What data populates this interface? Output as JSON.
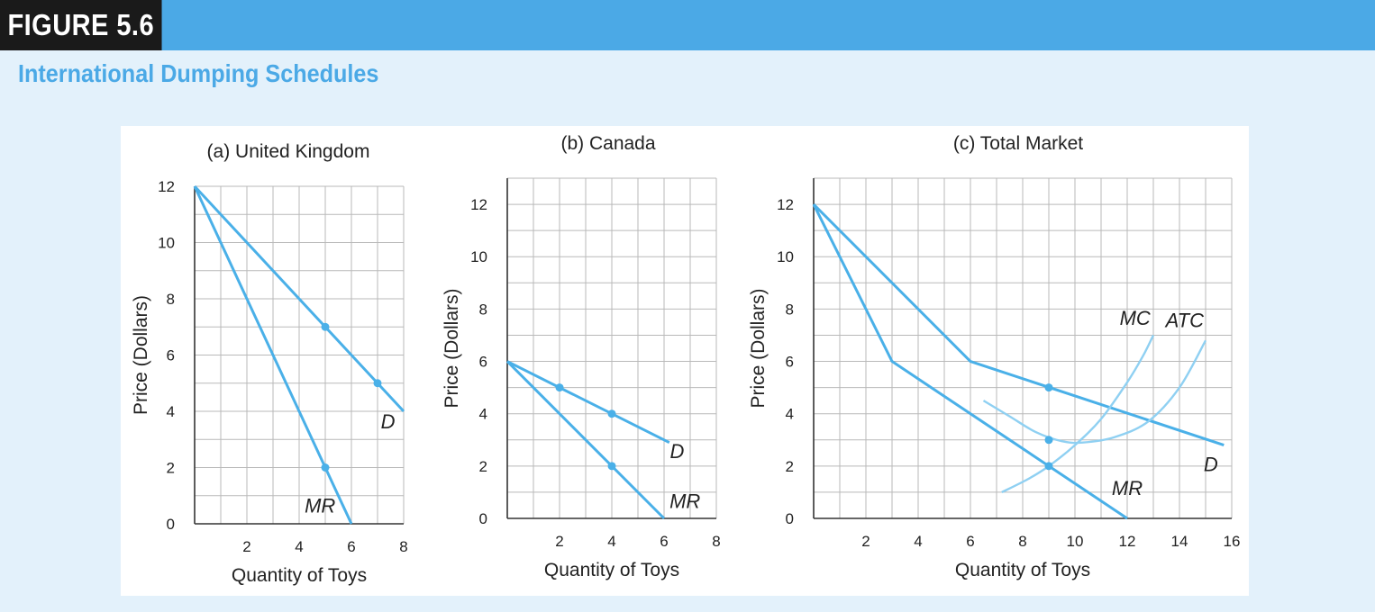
{
  "figure": {
    "label": "FIGURE 5.6",
    "title": "International Dumping Schedules"
  },
  "colors": {
    "accent": "#4ba9e6",
    "curve": "#4ab0e8",
    "curve_light": "#8fd0f2",
    "grid": "#b9b9b9",
    "axis": "#333333",
    "text": "#222222"
  },
  "chart_data": [
    {
      "type": "line",
      "title": "(a)   United Kingdom",
      "xlabel": "Quantity of Toys",
      "ylabel": "Price (Dollars)",
      "xlim": [
        0,
        8
      ],
      "ylim": [
        0,
        12
      ],
      "xticks": [
        2,
        4,
        6,
        8
      ],
      "yticks": [
        0,
        2,
        4,
        6,
        8,
        10,
        12
      ],
      "grid": true,
      "series": [
        {
          "name": "D",
          "label": "D",
          "label_at": [
            7.4,
            3.4
          ],
          "style": "solid",
          "x": [
            0,
            8
          ],
          "y": [
            12,
            4
          ]
        },
        {
          "name": "MR",
          "label": "MR",
          "label_at": [
            4.8,
            0.4
          ],
          "style": "solid",
          "x": [
            0,
            6
          ],
          "y": [
            12,
            0
          ]
        }
      ],
      "points": [
        {
          "x": 5,
          "y": 7,
          "label": "D at Q=5"
        },
        {
          "x": 7,
          "y": 5,
          "label": "D at Q=7"
        },
        {
          "x": 5,
          "y": 2,
          "label": "MR at Q=5"
        }
      ]
    },
    {
      "type": "line",
      "title": "(b)   Canada",
      "xlabel": "Quantity of Toys",
      "ylabel": "Price (Dollars)",
      "xlim": [
        0,
        8
      ],
      "ylim": [
        0,
        13
      ],
      "xticks": [
        2,
        4,
        6,
        8
      ],
      "yticks": [
        0,
        2,
        4,
        6,
        8,
        10,
        12
      ],
      "grid": true,
      "series": [
        {
          "name": "D",
          "label": "D",
          "label_at": [
            6.5,
            2.3
          ],
          "style": "solid",
          "x": [
            0,
            6.2
          ],
          "y": [
            6,
            2.9
          ]
        },
        {
          "name": "MR",
          "label": "MR",
          "label_at": [
            6.8,
            0.4
          ],
          "style": "solid",
          "x": [
            0,
            6
          ],
          "y": [
            6,
            0
          ]
        }
      ],
      "points": [
        {
          "x": 2,
          "y": 5,
          "label": "D at Q=2"
        },
        {
          "x": 4,
          "y": 4,
          "label": "D at Q=4"
        },
        {
          "x": 4,
          "y": 2,
          "label": "MR at Q=4"
        }
      ]
    },
    {
      "type": "line",
      "title": "(c)   Total Market",
      "xlabel": "Quantity of Toys",
      "ylabel": "Price (Dollars)",
      "xlim": [
        0,
        16
      ],
      "ylim": [
        0,
        13
      ],
      "xticks": [
        2,
        4,
        6,
        8,
        10,
        12,
        14,
        16
      ],
      "yticks": [
        0,
        2,
        4,
        6,
        8,
        10,
        12
      ],
      "grid": true,
      "series": [
        {
          "name": "D",
          "label": "D",
          "label_at": [
            15.2,
            1.8
          ],
          "style": "solid",
          "x": [
            0,
            6,
            15.7
          ],
          "y": [
            12,
            6,
            2.8
          ]
        },
        {
          "name": "MR",
          "label": "MR",
          "label_at": [
            12,
            0.9
          ],
          "style": "solid",
          "x": [
            0,
            3,
            12
          ],
          "y": [
            12,
            6,
            0
          ]
        },
        {
          "name": "MC",
          "label": "MC",
          "label_at": [
            12.3,
            7.4
          ],
          "style": "light",
          "curve": true,
          "x": [
            7.2,
            8.2,
            9,
            10,
            11,
            12,
            12.6,
            13
          ],
          "y": [
            1.0,
            1.5,
            2.0,
            2.8,
            3.8,
            5.2,
            6.2,
            7.0
          ]
        },
        {
          "name": "ATC",
          "label": "ATC",
          "label_at": [
            14.2,
            7.3
          ],
          "style": "light",
          "curve": true,
          "x": [
            6.5,
            7.5,
            8.5,
            9.5,
            10.3,
            11.5,
            12.8,
            14,
            15
          ],
          "y": [
            4.5,
            3.9,
            3.3,
            2.95,
            2.9,
            3.1,
            3.7,
            5.0,
            6.8
          ]
        }
      ],
      "points": [
        {
          "x": 9,
          "y": 5,
          "label": "D at Q=9"
        },
        {
          "x": 9,
          "y": 3,
          "label": "ATC at Q=9"
        },
        {
          "x": 9,
          "y": 2,
          "label": "MR=MC at Q=9"
        }
      ]
    }
  ]
}
